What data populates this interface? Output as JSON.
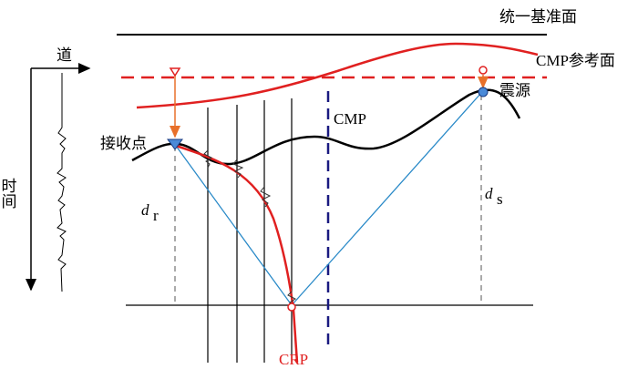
{
  "labels": {
    "datum": "统一基准面",
    "cmp_reference": "CMP参考面",
    "source": "震源",
    "cmp": "CMP",
    "receiver": "接收点",
    "trace": "道",
    "time": "时间",
    "dr": {
      "main": "d",
      "sub": "r"
    },
    "ds": {
      "main": "d",
      "sub": "s"
    },
    "crp": "CRP"
  }
}
